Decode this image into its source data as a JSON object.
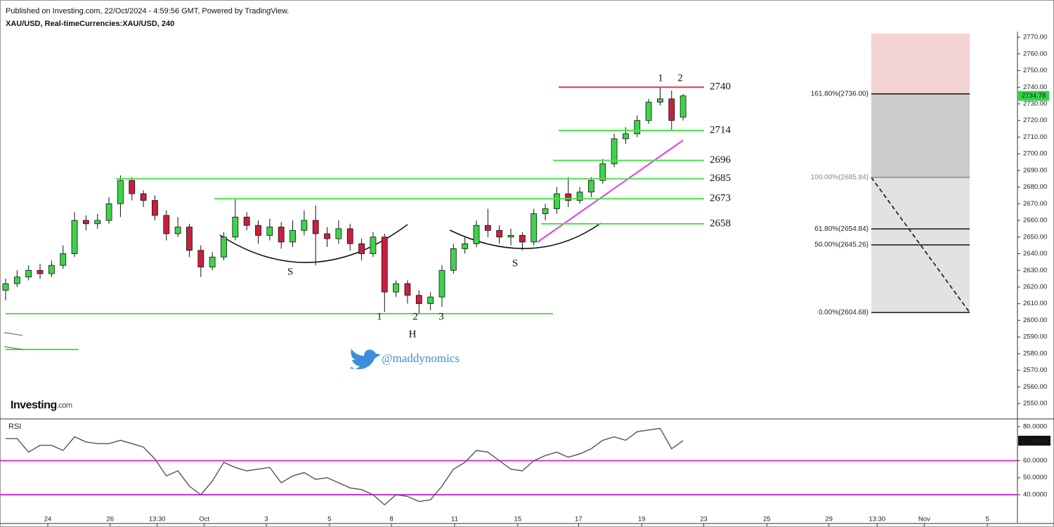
{
  "chart_data": {
    "type": "candlestick",
    "header": "Published on Investing.com, 22/Oct/2024 - 4:59:56 GMT, Powered by TradingView.",
    "symbol": "XAU/USD, Real-timeCurrencies:XAU/USD, 240",
    "open": [
      2618,
      2622,
      2626,
      2630,
      2628,
      2633,
      2640,
      2660,
      2658,
      2660,
      2670,
      2684,
      2676,
      2672,
      2663,
      2652,
      2656,
      2642,
      2632,
      2638,
      2650,
      2662,
      2657,
      2651,
      2656,
      2647,
      2654,
      2660,
      2652,
      2649,
      2655,
      2646,
      2640,
      2650,
      2617,
      2622,
      2615,
      2610,
      2614,
      2630,
      2643,
      2646,
      2657,
      2654,
      2650,
      2651,
      2647,
      2664,
      2667,
      2676,
      2672,
      2677,
      2684,
      2694,
      2709,
      2712,
      2720,
      2731,
      2733,
      2722
    ],
    "high": [
      2625,
      2630,
      2633,
      2634,
      2636,
      2645,
      2665,
      2663,
      2664,
      2674,
      2687,
      2686,
      2678,
      2675,
      2666,
      2662,
      2658,
      2645,
      2641,
      2653,
      2673,
      2665,
      2660,
      2661,
      2659,
      2660,
      2666,
      2669,
      2656,
      2660,
      2658,
      2649,
      2653,
      2652,
      2624,
      2624,
      2618,
      2617,
      2633,
      2646,
      2650,
      2660,
      2667,
      2657,
      2655,
      2653,
      2667,
      2670,
      2680,
      2686,
      2680,
      2686,
      2697,
      2712,
      2716,
      2723,
      2733,
      2740,
      2738,
      2736
    ],
    "low": [
      2612,
      2620,
      2624,
      2625,
      2626,
      2631,
      2638,
      2654,
      2655,
      2658,
      2662,
      2672,
      2668,
      2660,
      2648,
      2650,
      2638,
      2626,
      2630,
      2636,
      2648,
      2654,
      2646,
      2648,
      2643,
      2644,
      2651,
      2633,
      2644,
      2646,
      2642,
      2636,
      2638,
      2605,
      2614,
      2610,
      2604,
      2606,
      2608,
      2628,
      2640,
      2644,
      2650,
      2646,
      2645,
      2642,
      2645,
      2660,
      2664,
      2668,
      2670,
      2674,
      2682,
      2692,
      2706,
      2710,
      2718,
      2729,
      2714,
      2720
    ],
    "close": [
      2622,
      2626,
      2630,
      2628,
      2633,
      2640,
      2660,
      2658,
      2660,
      2670,
      2684,
      2676,
      2672,
      2663,
      2652,
      2656,
      2642,
      2632,
      2638,
      2650,
      2662,
      2657,
      2651,
      2656,
      2647,
      2654,
      2660,
      2652,
      2649,
      2655,
      2646,
      2640,
      2650,
      2617,
      2622,
      2615,
      2610,
      2614,
      2630,
      2643,
      2646,
      2657,
      2654,
      2650,
      2651,
      2647,
      2664,
      2667,
      2676,
      2672,
      2677,
      2684,
      2694,
      2709,
      2712,
      2720,
      2731,
      2733,
      2720,
      2734.78
    ],
    "up_color": "#3fd34a",
    "down_color": "#c8203f",
    "xlim": [
      -0.49,
      88.12
    ],
    "xticks": [
      {
        "value": 3.67,
        "label": "24"
      },
      {
        "value": 9.1,
        "label": "26"
      },
      {
        "value": 13.2,
        "label": "13:30"
      },
      {
        "value": 17.3,
        "label": "Oct"
      },
      {
        "value": 22.7,
        "label": "3"
      },
      {
        "value": 28.2,
        "label": "5"
      },
      {
        "value": 33.6,
        "label": "8"
      },
      {
        "value": 39.1,
        "label": "11"
      },
      {
        "value": 44.6,
        "label": "15"
      },
      {
        "value": 49.9,
        "label": "17"
      },
      {
        "value": 55.4,
        "label": "19"
      },
      {
        "value": 60.8,
        "label": "23"
      },
      {
        "value": 66.3,
        "label": "25"
      },
      {
        "value": 71.7,
        "label": "29"
      },
      {
        "value": 75.9,
        "label": "13:30"
      },
      {
        "value": 80.0,
        "label": "Nov"
      },
      {
        "value": 85.5,
        "label": "5"
      }
    ],
    "ylim": [
      2541.6,
      2773.4
    ],
    "yticks": [
      {
        "value": 2770,
        "label": "2770.00"
      },
      {
        "value": 2760,
        "label": "2760.00"
      },
      {
        "value": 2750,
        "label": "2750.00"
      },
      {
        "value": 2740,
        "label": "2740.00"
      },
      {
        "value": 2730,
        "label": "2730.00"
      },
      {
        "value": 2720,
        "label": "2720.00"
      },
      {
        "value": 2710,
        "label": "2710.00"
      },
      {
        "value": 2700,
        "label": "2700.00"
      },
      {
        "value": 2690,
        "label": "2690.00"
      },
      {
        "value": 2680,
        "label": "2680.00"
      },
      {
        "value": 2670,
        "label": "2670.00"
      },
      {
        "value": 2660,
        "label": "2660.00"
      },
      {
        "value": 2650,
        "label": "2650.00"
      },
      {
        "value": 2640,
        "label": "2640.00"
      },
      {
        "value": 2630,
        "label": "2630.00"
      },
      {
        "value": 2620,
        "label": "2620.00"
      },
      {
        "value": 2610,
        "label": "2610.00"
      },
      {
        "value": 2600,
        "label": "2600.00"
      },
      {
        "value": 2590,
        "label": "2590.00"
      },
      {
        "value": 2580,
        "label": "2580.00"
      },
      {
        "value": 2570,
        "label": "2570.00"
      },
      {
        "value": 2560,
        "label": "2560.00"
      },
      {
        "value": 2550,
        "label": "2550.00"
      }
    ],
    "levels": [
      2740,
      2714,
      2696,
      2685,
      2673,
      2658
    ],
    "level_colors": [
      "#e0384f",
      "#4ce04c",
      "#4ce04c",
      "#4ce04c",
      "#4ce04c",
      "#4ce04c"
    ],
    "fib": [
      {
        "value": 2736.0,
        "label": "161.80%(2736.00)"
      },
      {
        "value": 2685.84,
        "label": "100.00%(2685.84)"
      },
      {
        "value": 2654.84,
        "label": "61.80%(2654.84)"
      },
      {
        "value": 2645.26,
        "label": "50.00%(2645.26)"
      },
      {
        "value": 2604.68,
        "label": "0.00%(2604.68)"
      }
    ],
    "annotations": [
      "1",
      "2",
      "S",
      "S",
      "H",
      "1",
      "2",
      "3"
    ],
    "handle": "@maddynomics",
    "logo": "Investing",
    "logo_suffix": ".com",
    "rsi": {
      "title": "RSI",
      "values": [
        73,
        73,
        65,
        69,
        69,
        66,
        74,
        71,
        70,
        70,
        72,
        70,
        68,
        61,
        51,
        54,
        45,
        40,
        48,
        59,
        56,
        54,
        55,
        56,
        47,
        51,
        53,
        49,
        50,
        47,
        44,
        43,
        40,
        34,
        40,
        39,
        36,
        37,
        45,
        55,
        59,
        66,
        65,
        60,
        55,
        54,
        60,
        63,
        65,
        62,
        64,
        67,
        72,
        74,
        72,
        77,
        78,
        79,
        67,
        71.7454
      ],
      "color": "#555555",
      "ylim": [
        23.5,
        84.1
      ],
      "yticks": [
        {
          "value": 80,
          "label": "80.0000"
        },
        {
          "value": 60,
          "label": "60.0000"
        },
        {
          "value": 50,
          "label": "50.0000"
        },
        {
          "value": 40,
          "label": "40.0000"
        }
      ],
      "levels": [
        60,
        40
      ],
      "level_color": "#d633d6"
    }
  }
}
